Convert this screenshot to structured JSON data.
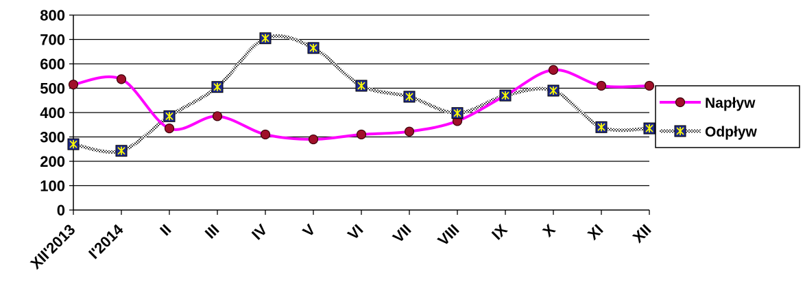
{
  "chart_data": {
    "type": "line",
    "title": "",
    "xlabel": "",
    "ylabel": "",
    "categories": [
      "XII'2013",
      "I'2014",
      "II",
      "III",
      "IV",
      "V",
      "VI",
      "VII",
      "VIII",
      "IX",
      "X",
      "XI",
      "XII"
    ],
    "ylim": [
      0,
      800
    ],
    "yticks": [
      "0",
      "100",
      "200",
      "300",
      "400",
      "500",
      "600",
      "700",
      "800"
    ],
    "grid": true,
    "legend_position": "right",
    "series": [
      {
        "name": "Napływ",
        "color": "#FF00FF",
        "marker": "circle",
        "marker_color": "#A0102A",
        "values": [
          515,
          537,
          335,
          385,
          310,
          290,
          310,
          322,
          365,
          470,
          575,
          510,
          510
        ]
      },
      {
        "name": "Odpływ",
        "color": "#555555",
        "marker": "x-square",
        "marker_color": "#1F2A8C",
        "values": [
          270,
          243,
          385,
          505,
          705,
          665,
          510,
          465,
          398,
          470,
          490,
          340,
          335
        ]
      }
    ]
  }
}
